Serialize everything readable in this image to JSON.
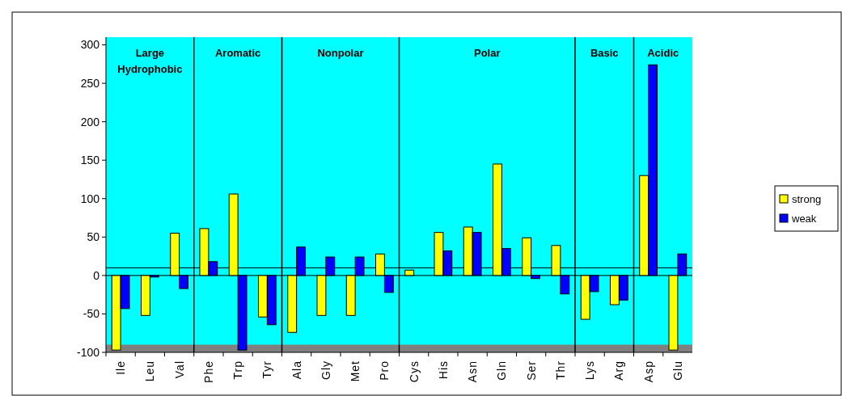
{
  "chart_data": {
    "type": "bar",
    "categories": [
      "Ile",
      "Leu",
      "Val",
      "Phe",
      "Trp",
      "Tyr",
      "Ala",
      "Gly",
      "Met",
      "Pro",
      "Cys",
      "His",
      "Asn",
      "Gln",
      "Ser",
      "Thr",
      "Lys",
      "Arg",
      "Asp",
      "Glu"
    ],
    "series": [
      {
        "name": "strong",
        "color": "#ffff00",
        "values": [
          -97,
          -52,
          55,
          61,
          106,
          -54,
          -74,
          -52,
          -52,
          28,
          7,
          56,
          63,
          145,
          49,
          39,
          -57,
          -38,
          130,
          -97
        ]
      },
      {
        "name": "weak",
        "color": "#0000ff",
        "values": [
          -43,
          -2,
          -17,
          18,
          -97,
          -64,
          37,
          24,
          24,
          -22,
          null,
          32,
          56,
          35,
          -4,
          -24,
          -21,
          -32,
          274,
          28
        ]
      }
    ],
    "ylim": [
      -100,
      310
    ],
    "yticks": [
      -100,
      -50,
      0,
      50,
      100,
      150,
      200,
      250,
      300
    ],
    "annotations": [
      "Large Hydrophobic",
      "Aromatic",
      "Nonpolar",
      "Polar",
      "Basic",
      "Acidic"
    ],
    "ref_lines": [
      {
        "axis": "y",
        "value": 0,
        "color": "#000000"
      },
      {
        "axis": "y",
        "value": 10,
        "color": "#000000"
      }
    ],
    "bands": [
      {
        "axis": "y",
        "from": -100,
        "to": -90,
        "color": "#808080"
      }
    ],
    "legend": "right",
    "grid": false
  }
}
